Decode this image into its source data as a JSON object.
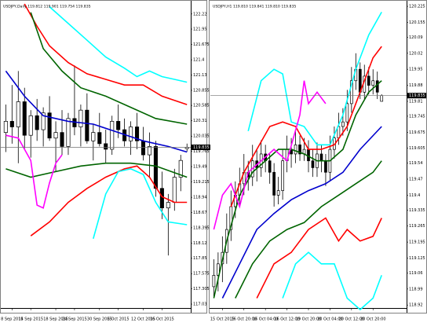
{
  "chart_data": [
    {
      "type": "candlestick",
      "title": "USDJPY,Daily  119.812 119.901 119.754 119.835",
      "open": [
        120.1,
        120.3,
        120.2,
        120.65,
        120.05,
        120.4,
        120.15,
        120.45,
        120.0,
        120.1,
        119.85,
        120.35,
        120.2,
        120.5,
        119.95,
        120.1,
        119.9,
        119.8,
        120.3,
        120.15,
        119.95,
        120.2,
        119.95,
        119.7,
        119.85,
        119.1,
        118.75,
        118.85,
        119.3,
        119.812
      ],
      "high": [
        120.6,
        120.95,
        121.2,
        120.9,
        120.5,
        120.7,
        120.55,
        120.75,
        120.3,
        120.5,
        120.45,
        121.3,
        120.6,
        120.8,
        120.25,
        120.45,
        120.15,
        120.4,
        120.6,
        120.35,
        120.3,
        120.45,
        120.2,
        120.1,
        119.95,
        119.4,
        119.0,
        119.45,
        119.7,
        119.901
      ],
      "low": [
        119.75,
        119.9,
        119.55,
        119.8,
        119.65,
        119.95,
        119.85,
        119.95,
        119.4,
        119.7,
        119.7,
        120.05,
        119.85,
        119.9,
        119.6,
        119.85,
        119.55,
        119.7,
        120.0,
        119.85,
        119.7,
        119.8,
        119.6,
        119.3,
        118.95,
        118.55,
        117.9,
        118.7,
        119.05,
        119.754
      ],
      "close": [
        120.3,
        120.2,
        120.65,
        120.05,
        120.4,
        120.15,
        120.45,
        120.0,
        120.1,
        119.85,
        120.35,
        120.2,
        120.5,
        119.95,
        120.1,
        119.9,
        119.8,
        120.3,
        120.15,
        119.95,
        120.2,
        119.95,
        119.7,
        119.85,
        119.1,
        118.75,
        118.85,
        119.3,
        119.6,
        119.835
      ],
      "series": [
        {
          "color": "#00ffff",
          "x": [
            7,
            10,
            13,
            16,
            19,
            21,
            23,
            25,
            27,
            29
          ],
          "values": [
            122.35,
            122.05,
            121.75,
            121.45,
            121.25,
            121.1,
            121.2,
            121.1,
            121.05,
            121.0
          ]
        },
        {
          "color": "#ff0000",
          "x": [
            3,
            5,
            7,
            10,
            13,
            16,
            19,
            22,
            25,
            29
          ],
          "values": [
            122.4,
            122.0,
            121.65,
            121.35,
            121.15,
            121.05,
            120.95,
            120.95,
            120.75,
            120.6
          ]
        },
        {
          "color": "#006400",
          "x": [
            4,
            6,
            9,
            12,
            16,
            20,
            24,
            29
          ],
          "values": [
            122.25,
            121.6,
            121.2,
            120.9,
            120.75,
            120.55,
            120.35,
            120.25
          ]
        },
        {
          "color": "#006400",
          "x": [
            0,
            4,
            8,
            12,
            16,
            20,
            24,
            29
          ],
          "values": [
            119.45,
            119.3,
            119.4,
            119.5,
            119.55,
            119.55,
            119.5,
            119.3
          ]
        },
        {
          "color": "#0000cd",
          "x": [
            0,
            3,
            6,
            10,
            14,
            18,
            22,
            26,
            29
          ],
          "values": [
            121.2,
            120.75,
            120.4,
            120.3,
            120.25,
            120.1,
            119.95,
            119.85,
            119.75
          ]
        },
        {
          "color": "#ff00ff",
          "x": [
            0,
            2,
            4,
            5,
            6,
            7,
            8,
            9
          ],
          "values": [
            120.05,
            120.0,
            119.6,
            118.8,
            118.75,
            119.2,
            119.55,
            119.7
          ]
        },
        {
          "color": "#ff0000",
          "x": [
            4,
            7,
            10,
            13,
            16,
            19,
            21,
            23,
            25,
            27,
            29
          ],
          "values": [
            118.25,
            118.5,
            118.85,
            119.1,
            119.3,
            119.45,
            119.5,
            119.3,
            118.95,
            118.85,
            118.85
          ]
        },
        {
          "color": "#00ffff",
          "x": [
            14,
            16,
            18,
            20,
            22,
            24,
            26,
            29
          ],
          "values": [
            118.2,
            119.0,
            119.4,
            119.45,
            119.35,
            118.85,
            118.5,
            118.45
          ]
        }
      ],
      "last_price": 119.835,
      "xlim": [
        -0.8,
        29.6
      ],
      "xticks": [
        {
          "value": 1,
          "label": "8 Sep 2015"
        },
        {
          "value": 4,
          "label": "14 Sep 2015"
        },
        {
          "value": 8,
          "label": "18 Sep 2015"
        },
        {
          "value": 11,
          "label": "24 Sep 2015"
        },
        {
          "value": 15,
          "label": "30 Sep 2015"
        },
        {
          "value": 18,
          "label": "6 Oct 2015"
        },
        {
          "value": 22,
          "label": "12 Oct 2015"
        },
        {
          "value": 25,
          "label": "16 Oct 2015"
        }
      ],
      "ylim": [
        116.96,
        122.4
      ],
      "yticks": [
        122.22,
        121.95,
        121.675,
        121.4,
        121.13,
        120.855,
        120.585,
        120.31,
        120.035,
        119.765,
        119.49,
        119.215,
        118.94,
        118.67,
        118.395,
        118.12,
        117.85,
        117.575,
        117.305,
        117.03
      ]
    },
    {
      "type": "candlestick",
      "title": "USDJPY,H1  119.810 119.841 119.810 119.835",
      "open": [
        119.0,
        119.05,
        119.1,
        119.15,
        119.25,
        119.35,
        119.4,
        119.45,
        119.5,
        119.48,
        119.55,
        119.52,
        119.58,
        119.55,
        119.5,
        119.4,
        119.42,
        119.55,
        119.6,
        119.58,
        119.62,
        119.58,
        119.6,
        119.55,
        119.52,
        119.58,
        119.55,
        119.5,
        119.6,
        119.65,
        119.7,
        119.72,
        119.8,
        119.9,
        119.95,
        119.85,
        119.92,
        119.88,
        119.9,
        119.81
      ],
      "high": [
        119.12,
        119.15,
        119.22,
        119.32,
        119.42,
        119.46,
        119.52,
        119.58,
        119.55,
        119.62,
        119.6,
        119.64,
        119.62,
        119.58,
        119.54,
        119.48,
        119.6,
        119.66,
        119.65,
        119.68,
        119.66,
        119.65,
        119.64,
        119.6,
        119.63,
        119.62,
        119.58,
        119.66,
        119.7,
        119.76,
        119.78,
        119.86,
        119.96,
        120.02,
        119.98,
        119.97,
        119.96,
        119.95,
        119.94,
        119.841
      ],
      "low": [
        118.95,
        118.98,
        119.02,
        119.1,
        119.2,
        119.3,
        119.35,
        119.4,
        119.42,
        119.44,
        119.46,
        119.48,
        119.5,
        119.45,
        119.35,
        119.36,
        119.38,
        119.5,
        119.52,
        119.54,
        119.55,
        119.55,
        119.5,
        119.48,
        119.48,
        119.5,
        119.44,
        119.46,
        119.56,
        119.62,
        119.66,
        119.68,
        119.76,
        119.86,
        119.82,
        119.82,
        119.84,
        119.84,
        119.82,
        119.81
      ],
      "close": [
        119.05,
        119.1,
        119.15,
        119.25,
        119.35,
        119.4,
        119.45,
        119.5,
        119.48,
        119.55,
        119.52,
        119.58,
        119.55,
        119.5,
        119.4,
        119.42,
        119.55,
        119.6,
        119.58,
        119.62,
        119.58,
        119.6,
        119.55,
        119.52,
        119.58,
        119.55,
        119.5,
        119.6,
        119.65,
        119.7,
        119.72,
        119.8,
        119.9,
        119.95,
        119.85,
        119.92,
        119.88,
        119.9,
        119.85,
        119.835
      ],
      "series": [
        {
          "color": "#00ffff",
          "x": [
            8,
            11,
            14,
            16,
            18,
            21,
            24,
            27,
            30,
            33,
            36,
            39
          ],
          "values": [
            119.68,
            119.9,
            119.95,
            119.93,
            119.72,
            119.7,
            119.62,
            119.62,
            119.75,
            119.95,
            120.1,
            120.2
          ]
        },
        {
          "color": "#ff0000",
          "x": [
            4,
            7,
            10,
            13,
            16,
            19,
            22,
            25,
            28,
            31,
            34,
            37,
            39
          ],
          "values": [
            119.35,
            119.5,
            119.6,
            119.7,
            119.72,
            119.7,
            119.6,
            119.6,
            119.62,
            119.7,
            119.85,
            120.0,
            120.05
          ]
        },
        {
          "color": "#006400",
          "x": [
            0,
            3,
            6,
            9,
            12,
            15,
            18,
            21,
            24,
            27,
            30,
            33,
            36,
            39
          ],
          "values": [
            118.95,
            119.2,
            119.4,
            119.5,
            119.55,
            119.6,
            119.6,
            119.58,
            119.55,
            119.55,
            119.6,
            119.75,
            119.85,
            119.9
          ]
        },
        {
          "color": "#0000cd",
          "x": [
            2,
            6,
            10,
            14,
            18,
            22,
            26,
            30,
            34,
            39
          ],
          "values": [
            118.95,
            119.1,
            119.25,
            119.32,
            119.38,
            119.42,
            119.45,
            119.5,
            119.6,
            119.7
          ]
        },
        {
          "color": "#006400",
          "x": [
            5,
            9,
            13,
            17,
            21,
            25,
            29,
            33,
            37,
            39
          ],
          "values": [
            118.95,
            119.1,
            119.2,
            119.25,
            119.28,
            119.35,
            119.4,
            119.45,
            119.5,
            119.55
          ]
        },
        {
          "color": "#ff0000",
          "x": [
            10,
            14,
            18,
            22,
            26,
            29,
            31,
            34,
            37,
            39
          ],
          "values": [
            118.95,
            119.1,
            119.15,
            119.25,
            119.3,
            119.2,
            119.25,
            119.2,
            119.22,
            119.3
          ]
        },
        {
          "color": "#00ffff",
          "x": [
            16,
            19,
            22,
            25,
            28,
            31,
            34,
            37,
            39
          ],
          "values": [
            118.95,
            119.1,
            119.15,
            119.1,
            119.1,
            118.95,
            118.9,
            118.95,
            119.05
          ]
        },
        {
          "color": "#ff00ff",
          "x": [
            0,
            2,
            4,
            6,
            8,
            11,
            14,
            17,
            20,
            21,
            22,
            24,
            26
          ],
          "values": [
            119.25,
            119.4,
            119.45,
            119.35,
            119.5,
            119.55,
            119.6,
            119.55,
            119.75,
            119.9,
            119.8,
            119.85,
            119.8
          ]
        }
      ],
      "last_price": 119.835,
      "xlim": [
        -0.8,
        44.8
      ],
      "xticks": [
        {
          "value": 2,
          "label": "15 Oct 2015"
        },
        {
          "value": 7,
          "label": "16 Oct 20:00"
        },
        {
          "value": 12,
          "label": "16 Oct 04:00"
        },
        {
          "value": 17,
          "label": "16 Oct 12:00"
        },
        {
          "value": 22,
          "label": "19 Oct 20:00"
        },
        {
          "value": 27,
          "label": "20 Oct 04:00"
        },
        {
          "value": 32,
          "label": "20 Oct 12:00"
        },
        {
          "value": 37,
          "label": "20 Oct 20:00"
        }
      ],
      "ylim": [
        118.907,
        120.239
      ],
      "yticks": [
        120.225,
        120.155,
        120.09,
        120.02,
        119.95,
        119.88,
        119.81,
        119.745,
        119.675,
        119.605,
        119.54,
        119.47,
        119.4,
        119.335,
        119.265,
        119.195,
        119.125,
        119.06,
        118.99,
        118.92
      ]
    }
  ]
}
